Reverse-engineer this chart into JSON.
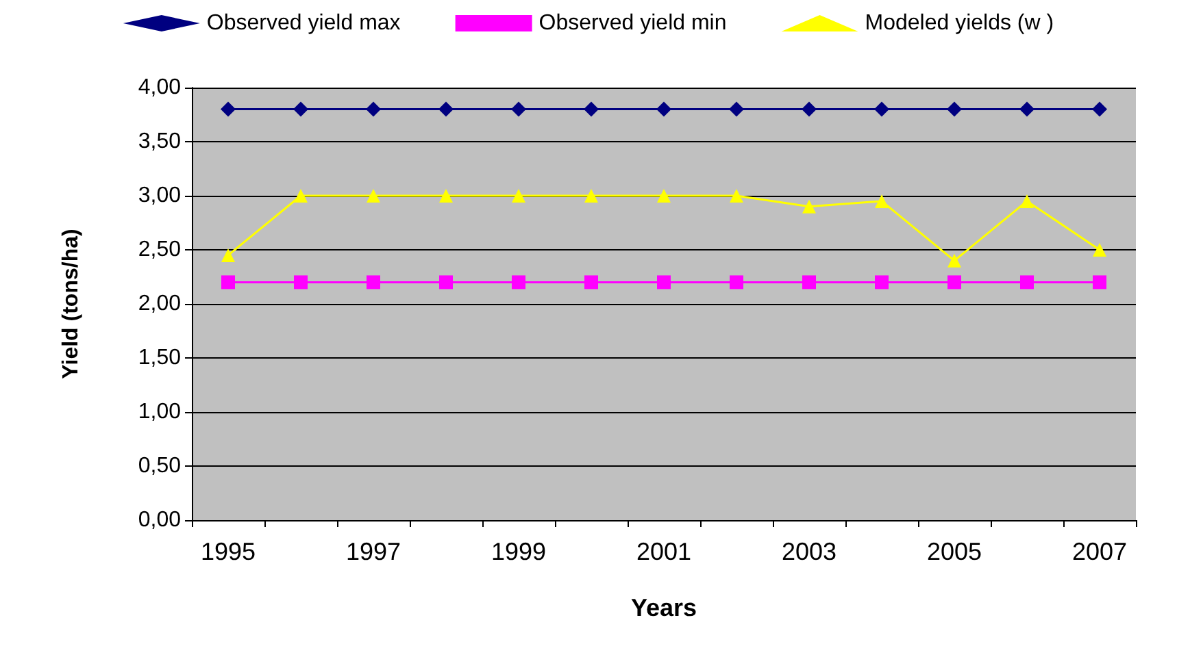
{
  "chart_data": {
    "type": "line",
    "xlabel": "Years",
    "ylabel": "Yield (tons/ha)",
    "categories": [
      "1995",
      null,
      "1997",
      null,
      "1999",
      null,
      "2001",
      null,
      "2003",
      null,
      "2005",
      null,
      "2007"
    ],
    "series": [
      {
        "name": "Observed yield max",
        "color": "#000080",
        "marker": "diamond",
        "values": [
          3.8,
          3.8,
          3.8,
          3.8,
          3.8,
          3.8,
          3.8,
          3.8,
          3.8,
          3.8,
          3.8,
          3.8,
          3.8
        ]
      },
      {
        "name": "Observed yield min",
        "color": "#ff00ff",
        "marker": "square",
        "values": [
          2.2,
          2.2,
          2.2,
          2.2,
          2.2,
          2.2,
          2.2,
          2.2,
          2.2,
          2.2,
          2.2,
          2.2,
          2.2
        ]
      },
      {
        "name": "Modeled yields (w )",
        "color": "#ffff00",
        "marker": "triangle",
        "values": [
          2.45,
          3.0,
          3.0,
          3.0,
          3.0,
          3.0,
          3.0,
          3.0,
          2.9,
          2.95,
          2.4,
          2.95,
          2.5
        ]
      }
    ],
    "ylim": [
      0,
      4
    ],
    "yticks": [
      {
        "value": 0,
        "label": "0,00"
      },
      {
        "value": 0.5,
        "label": "0,50"
      },
      {
        "value": 1,
        "label": "1,00"
      },
      {
        "value": 1.5,
        "label": "1,50"
      },
      {
        "value": 2,
        "label": "2,00"
      },
      {
        "value": 2.5,
        "label": "2,50"
      },
      {
        "value": 3,
        "label": "3,00"
      },
      {
        "value": 3.5,
        "label": "3,50"
      },
      {
        "value": 4,
        "label": "4,00"
      }
    ],
    "grid": "y",
    "legend": "top",
    "line_style": "solid"
  }
}
